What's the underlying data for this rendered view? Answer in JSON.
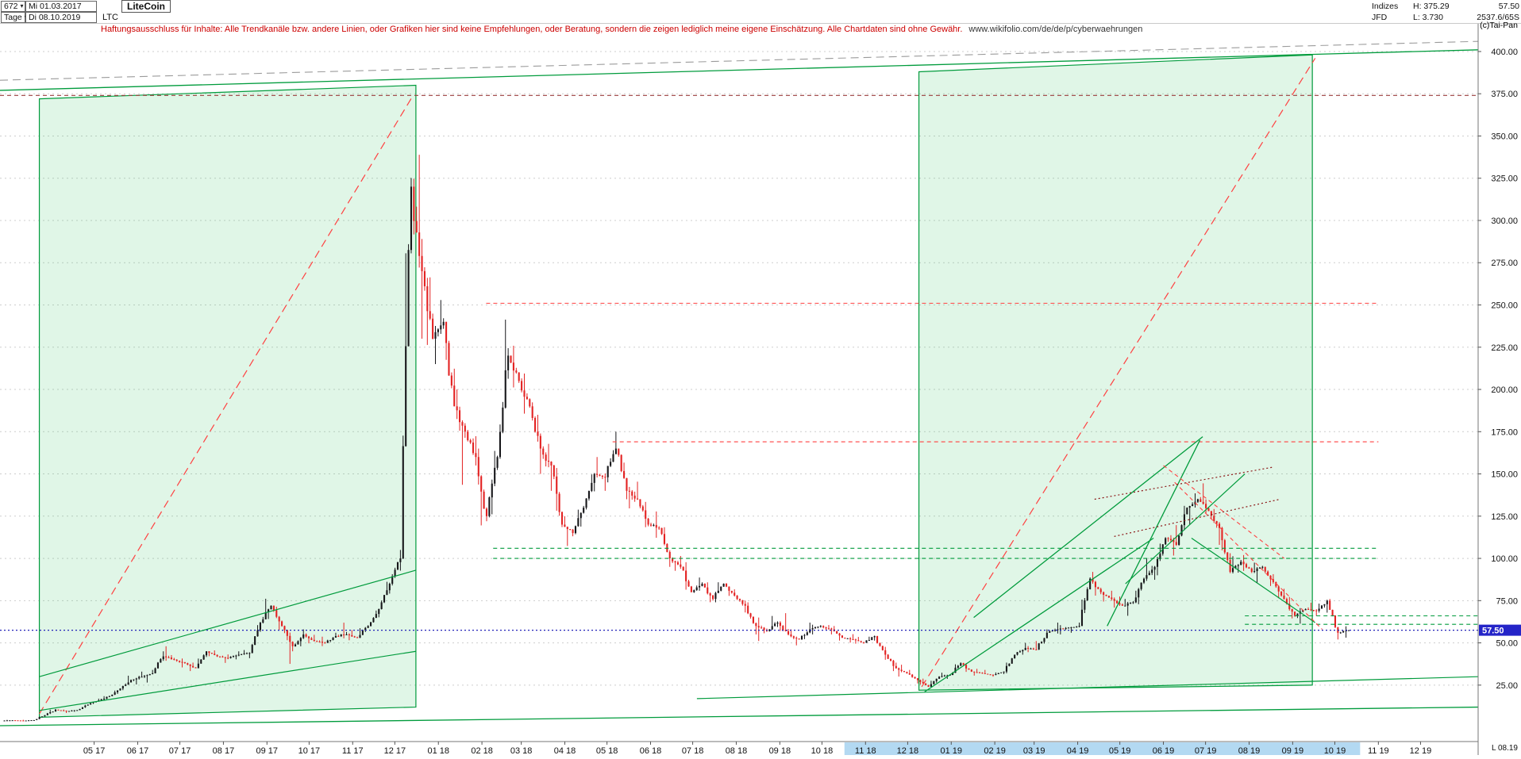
{
  "header": {
    "bars_count": "672",
    "dropdown_arrow": "▾",
    "start_date": "Mi 01.03.2017",
    "period": "Tage",
    "end_date": "Di 08.10.2019",
    "symbol": "LTC",
    "title": "LiteCoin",
    "right": {
      "indizes": "Indizes",
      "high": "H: 375.29",
      "last": "57.50",
      "provider": "JFD",
      "low": "L: 3.730",
      "volume": "2537.6/65S",
      "copyright": "(c)Tai-Pan"
    }
  },
  "disclaimer": {
    "text": "Haftungsausschluss für Inhalte: Alle Trendkanäle bzw. andere Linien, oder Grafiken hier sind keine Empfehlungen, oder Beratung, sondern die zeigen lediglich meine eigene Einschätzung. Alle Chartdaten sind ohne Gewähr.",
    "url": "www.wikifolio.com/de/de/p/cyberwaehrungen"
  },
  "footer": {
    "right_label": "L 08.19"
  },
  "chart_data": {
    "type": "candlestick",
    "title": "LiteCoin",
    "interval": "Tage",
    "date_range": [
      "Mi 01.03.2017",
      "Di 08.10.2019"
    ],
    "xlabel": "",
    "ylabel": "",
    "ylim": [
      -8.4,
      416.4
    ],
    "xlim_days": [
      -6,
      1046
    ],
    "current_price": 57.5,
    "current_price_label": "57.50",
    "highlight_band_days": [
      595,
      962
    ],
    "candle_day_span": [
      0,
      951
    ],
    "y_ticks": [
      {
        "v": 400,
        "label": "400.00"
      },
      {
        "v": 375,
        "label": "375.00"
      },
      {
        "v": 350,
        "label": "350.00"
      },
      {
        "v": 325,
        "label": "325.00"
      },
      {
        "v": 300,
        "label": "300.00"
      },
      {
        "v": 275,
        "label": "275.00"
      },
      {
        "v": 250,
        "label": "250.00"
      },
      {
        "v": 225,
        "label": "225.00"
      },
      {
        "v": 200,
        "label": "200.00"
      },
      {
        "v": 175,
        "label": "175.00"
      },
      {
        "v": 150,
        "label": "150.00"
      },
      {
        "v": 125,
        "label": "125.00"
      },
      {
        "v": 100,
        "label": "100.00"
      },
      {
        "v": 75,
        "label": "75.00"
      },
      {
        "v": 50,
        "label": "50.00"
      },
      {
        "v": 25,
        "label": "25.00"
      }
    ],
    "months": [
      {
        "label": "05 17",
        "day": 61
      },
      {
        "label": "06 17",
        "day": 92
      },
      {
        "label": "07 17",
        "day": 122
      },
      {
        "label": "08 17",
        "day": 153
      },
      {
        "label": "09 17",
        "day": 184
      },
      {
        "label": "10 17",
        "day": 214
      },
      {
        "label": "11 17",
        "day": 245
      },
      {
        "label": "12 17",
        "day": 275
      },
      {
        "label": "01 18",
        "day": 306
      },
      {
        "label": "02 18",
        "day": 337
      },
      {
        "label": "03 18",
        "day": 365
      },
      {
        "label": "04 18",
        "day": 396
      },
      {
        "label": "05 18",
        "day": 426
      },
      {
        "label": "06 18",
        "day": 457
      },
      {
        "label": "07 18",
        "day": 487
      },
      {
        "label": "08 18",
        "day": 518
      },
      {
        "label": "09 18",
        "day": 549
      },
      {
        "label": "10 18",
        "day": 579
      },
      {
        "label": "11 18",
        "day": 610
      },
      {
        "label": "12 18",
        "day": 640
      },
      {
        "label": "01 19",
        "day": 671
      },
      {
        "label": "02 19",
        "day": 702
      },
      {
        "label": "03 19",
        "day": 730
      },
      {
        "label": "04 19",
        "day": 761
      },
      {
        "label": "05 19",
        "day": 791
      },
      {
        "label": "06 19",
        "day": 822
      },
      {
        "label": "07 19",
        "day": 852
      },
      {
        "label": "08 19",
        "day": 883
      },
      {
        "label": "09 19",
        "day": 914
      },
      {
        "label": "10 19",
        "day": 944
      },
      {
        "label": "11 19",
        "day": 975
      },
      {
        "label": "12 19",
        "day": 1005
      }
    ],
    "weekly_ohlc": [
      [
        4,
        4.5,
        3.73,
        4.2
      ],
      [
        4.2,
        4.6,
        3.9,
        4
      ],
      [
        4,
        4.4,
        3.8,
        4.3
      ],
      [
        4.3,
        7.5,
        4.2,
        7.2
      ],
      [
        7.2,
        12,
        6.8,
        10.5
      ],
      [
        10.5,
        11,
        8.5,
        9.5
      ],
      [
        9.5,
        10.5,
        8.8,
        10.2
      ],
      [
        10.2,
        14,
        9.8,
        13.5
      ],
      [
        13.5,
        17,
        13,
        16
      ],
      [
        16,
        20,
        15,
        18.5
      ],
      [
        18.5,
        24,
        17.5,
        23
      ],
      [
        23,
        32,
        22,
        28
      ],
      [
        28,
        33,
        25,
        30
      ],
      [
        30,
        34,
        26,
        32
      ],
      [
        32,
        45,
        31,
        42
      ],
      [
        42,
        48,
        38,
        40
      ],
      [
        40,
        42,
        35,
        38
      ],
      [
        38,
        40,
        32,
        35
      ],
      [
        35,
        48,
        34,
        45
      ],
      [
        45,
        47,
        40,
        42
      ],
      [
        42,
        44,
        38,
        41
      ],
      [
        41,
        45,
        39,
        43
      ],
      [
        43,
        46,
        40,
        44
      ],
      [
        44,
        65,
        43,
        62
      ],
      [
        62,
        80,
        58,
        72
      ],
      [
        72,
        74,
        55,
        60
      ],
      [
        60,
        62,
        35,
        48
      ],
      [
        48,
        58,
        45,
        55
      ],
      [
        55,
        58,
        48,
        51
      ],
      [
        51,
        54,
        48,
        50
      ],
      [
        50,
        56,
        49,
        54
      ],
      [
        54,
        62,
        52,
        55
      ],
      [
        55,
        58,
        50,
        53
      ],
      [
        53,
        64,
        52,
        60
      ],
      [
        60,
        72,
        58,
        70
      ],
      [
        70,
        90,
        68,
        85
      ],
      [
        85,
        105,
        80,
        100
      ],
      [
        100,
        375,
        98,
        320
      ],
      [
        320,
        366,
        230,
        270
      ],
      [
        270,
        290,
        210,
        230
      ],
      [
        230,
        255,
        215,
        240
      ],
      [
        240,
        250,
        180,
        190
      ],
      [
        190,
        200,
        140,
        175
      ],
      [
        175,
        185,
        155,
        160
      ],
      [
        160,
        165,
        105,
        125
      ],
      [
        125,
        170,
        115,
        160
      ],
      [
        160,
        250,
        155,
        220
      ],
      [
        220,
        230,
        195,
        205
      ],
      [
        205,
        215,
        180,
        190
      ],
      [
        190,
        200,
        150,
        165
      ],
      [
        165,
        175,
        140,
        155
      ],
      [
        155,
        160,
        110,
        120
      ],
      [
        120,
        125,
        105,
        115
      ],
      [
        115,
        135,
        110,
        130
      ],
      [
        130,
        155,
        125,
        150
      ],
      [
        150,
        160,
        140,
        148
      ],
      [
        148,
        175,
        145,
        165
      ],
      [
        165,
        170,
        135,
        140
      ],
      [
        140,
        150,
        125,
        135
      ],
      [
        135,
        140,
        115,
        120
      ],
      [
        120,
        128,
        112,
        118
      ],
      [
        118,
        122,
        95,
        100
      ],
      [
        100,
        105,
        90,
        95
      ],
      [
        95,
        100,
        75,
        80
      ],
      [
        80,
        90,
        78,
        85
      ],
      [
        85,
        88,
        72,
        76
      ],
      [
        76,
        90,
        74,
        85
      ],
      [
        85,
        87,
        75,
        78
      ],
      [
        78,
        80,
        68,
        72
      ],
      [
        72,
        74,
        55,
        60
      ],
      [
        60,
        65,
        49,
        57
      ],
      [
        57,
        68,
        55,
        62
      ],
      [
        62,
        72,
        52,
        55
      ],
      [
        55,
        58,
        48,
        52
      ],
      [
        52,
        62,
        50,
        58
      ],
      [
        58,
        62,
        55,
        60
      ],
      [
        60,
        62,
        55,
        58
      ],
      [
        58,
        60,
        50,
        53
      ],
      [
        53,
        56,
        50,
        52
      ],
      [
        52,
        54,
        48,
        50
      ],
      [
        50,
        56,
        48,
        54
      ],
      [
        54,
        56,
        40,
        43
      ],
      [
        43,
        45,
        32,
        35
      ],
      [
        35,
        38,
        28,
        32
      ],
      [
        32,
        34,
        26,
        28
      ],
      [
        28,
        30,
        22.5,
        24
      ],
      [
        24,
        32,
        23,
        30
      ],
      [
        30,
        33,
        28,
        31
      ],
      [
        31,
        40,
        30,
        38
      ],
      [
        38,
        39,
        31,
        33
      ],
      [
        33,
        35,
        30,
        32
      ],
      [
        32,
        34,
        30,
        31
      ],
      [
        31,
        34,
        30,
        33
      ],
      [
        33,
        45,
        32,
        43
      ],
      [
        43,
        50,
        41,
        47
      ],
      [
        47,
        52,
        44,
        46
      ],
      [
        46,
        58,
        45,
        56
      ],
      [
        56,
        62,
        54,
        58
      ],
      [
        58,
        61,
        55,
        59
      ],
      [
        59,
        62,
        56,
        60
      ],
      [
        60,
        94,
        58,
        88
      ],
      [
        88,
        92,
        75,
        80
      ],
      [
        80,
        84,
        72,
        76
      ],
      [
        76,
        80,
        68,
        72
      ],
      [
        72,
        78,
        66,
        74
      ],
      [
        74,
        92,
        70,
        88
      ],
      [
        88,
        105,
        82,
        95
      ],
      [
        95,
        118,
        90,
        112
      ],
      [
        112,
        122,
        100,
        108
      ],
      [
        108,
        135,
        105,
        130
      ],
      [
        130,
        140,
        120,
        135
      ],
      [
        135,
        146,
        125,
        128
      ],
      [
        128,
        132,
        108,
        118
      ],
      [
        118,
        122,
        86,
        92
      ],
      [
        92,
        105,
        88,
        98
      ],
      [
        98,
        102,
        88,
        92
      ],
      [
        92,
        100,
        85,
        95
      ],
      [
        95,
        98,
        82,
        86
      ],
      [
        86,
        90,
        72,
        76
      ],
      [
        76,
        80,
        62,
        66
      ],
      [
        66,
        72,
        60,
        70
      ],
      [
        70,
        74,
        66,
        69
      ],
      [
        69,
        78,
        64,
        75
      ],
      [
        75,
        76,
        52,
        56
      ],
      [
        56,
        60,
        52,
        57.5
      ]
    ],
    "colors": {
      "up": "#17171a",
      "down": "#e32222",
      "green": "#009b3c",
      "red": "#ff4040",
      "gray": "#9b9b9b",
      "darkred": "#8b1616",
      "maroon": "#9a3c3c",
      "blue": "#2121b8",
      "box_fill": "rgba(70,200,110,0.17)",
      "band": "#b3d9f2",
      "badge": "#2424c8",
      "grid": "#cdcdcd"
    },
    "overlays": {
      "boxes": [
        {
          "pts": [
            [
              22,
              372
            ],
            [
              290,
              380
            ],
            [
              290,
              12
            ],
            [
              22,
              6
            ]
          ]
        },
        {
          "pts": [
            [
              648,
              388
            ],
            [
              928,
              398
            ],
            [
              928,
              25
            ],
            [
              648,
              22
            ]
          ]
        }
      ],
      "lines": [
        {
          "p": [
            [
              22,
              8
            ],
            [
              288,
              374
            ]
          ],
          "c": "red",
          "s": "ldash",
          "w": 1.2
        },
        {
          "p": [
            [
              650,
              24
            ],
            [
              930,
              396
            ]
          ],
          "c": "red",
          "s": "ldash",
          "w": 1.2
        },
        {
          "p": [
            [
              -6,
              377
            ],
            [
              1046,
              401
            ]
          ],
          "c": "green",
          "s": "solid",
          "w": 1.3
        },
        {
          "p": [
            [
              -6,
              383
            ],
            [
              1046,
              406
            ]
          ],
          "c": "gray",
          "s": "ldash",
          "w": 1.1
        },
        {
          "p": [
            [
              -6,
              374
            ],
            [
              1046,
              374
            ]
          ],
          "c": "maroon",
          "s": "dash",
          "w": 1.1
        },
        {
          "p": [
            [
              -6,
              1
            ],
            [
              1046,
              12
            ]
          ],
          "c": "green",
          "s": "solid",
          "w": 1.3
        },
        {
          "p": [
            [
              490,
              17
            ],
            [
              1046,
              30
            ]
          ],
          "c": "green",
          "s": "solid",
          "w": 1.2
        },
        {
          "p": [
            [
              340,
              251
            ],
            [
              975,
              251
            ]
          ],
          "c": "red",
          "s": "dash",
          "w": 1.1
        },
        {
          "p": [
            [
              430,
              169
            ],
            [
              975,
              169
            ]
          ],
          "c": "red",
          "s": "dash",
          "w": 1.1
        },
        {
          "p": [
            [
              345,
              106
            ],
            [
              975,
              106
            ]
          ],
          "c": "green",
          "s": "dash",
          "w": 1.1
        },
        {
          "p": [
            [
              345,
              100
            ],
            [
              975,
              100
            ]
          ],
          "c": "green",
          "s": "dash",
          "w": 1.1
        },
        {
          "p": [
            [
              880,
              66
            ],
            [
              1046,
              66
            ]
          ],
          "c": "green",
          "s": "dash",
          "w": 1.1
        },
        {
          "p": [
            [
              880,
              61
            ],
            [
              1046,
              61
            ]
          ],
          "c": "green",
          "s": "dash",
          "w": 1.1
        },
        {
          "p": [
            [
              -6,
              57.5
            ],
            [
              1046,
              57.5
            ]
          ],
          "c": "blue",
          "s": "dot",
          "w": 1.2
        },
        {
          "p": [
            [
              687,
              65
            ],
            [
              850,
              172
            ]
          ],
          "c": "green",
          "s": "solid",
          "w": 1.3
        },
        {
          "p": [
            [
              652,
              21
            ],
            [
              815,
              112
            ]
          ],
          "c": "green",
          "s": "solid",
          "w": 1.3
        },
        {
          "p": [
            [
              782,
              60
            ],
            [
              848,
              170
            ]
          ],
          "c": "green",
          "s": "solid",
          "w": 1.3
        },
        {
          "p": [
            [
              795,
              85
            ],
            [
              880,
              150
            ]
          ],
          "c": "green",
          "s": "solid",
          "w": 1.2
        },
        {
          "p": [
            [
              842,
              112
            ],
            [
              930,
              62
            ]
          ],
          "c": "green",
          "s": "solid",
          "w": 1.2
        },
        {
          "p": [
            [
              830,
              145
            ],
            [
              935,
              58
            ]
          ],
          "c": "red",
          "s": "dash",
          "w": 1.1
        },
        {
          "p": [
            [
              822,
              155
            ],
            [
              908,
              100
            ]
          ],
          "c": "red",
          "s": "dash",
          "w": 1.1
        },
        {
          "p": [
            [
              773,
              135
            ],
            [
              900,
              154
            ]
          ],
          "c": "darkred",
          "s": "dot",
          "w": 1.2
        },
        {
          "p": [
            [
              787,
              113
            ],
            [
              905,
              135
            ]
          ],
          "c": "darkred",
          "s": "dot",
          "w": 1.2
        },
        {
          "p": [
            [
              22,
              10
            ],
            [
              290,
              45
            ]
          ],
          "c": "green",
          "s": "solid",
          "w": 1.2
        },
        {
          "p": [
            [
              22,
              30
            ],
            [
              290,
              93
            ]
          ],
          "c": "green",
          "s": "solid",
          "w": 1.2
        }
      ]
    }
  }
}
